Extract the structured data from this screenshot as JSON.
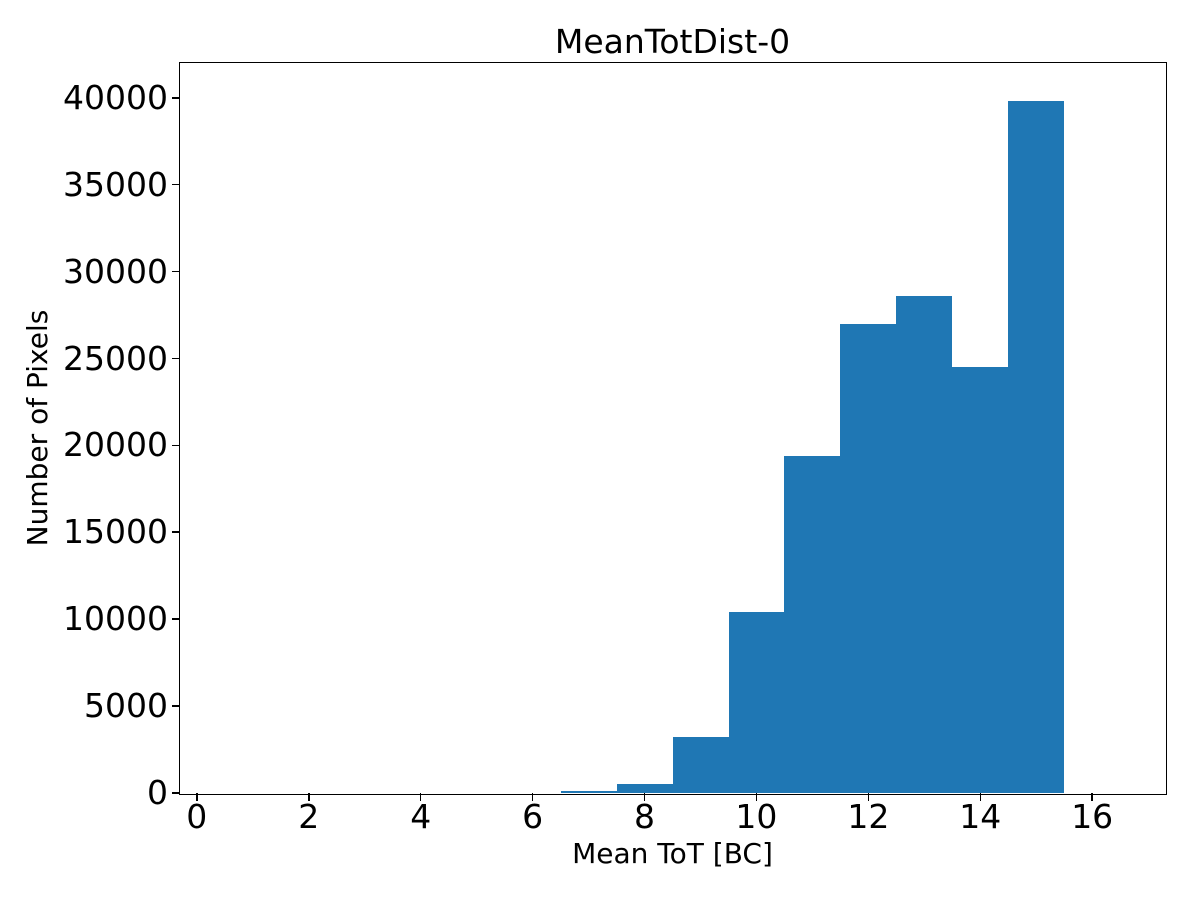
{
  "figure": {
    "background_color": "#ffffff",
    "text_color": "#000000"
  },
  "chart_data": {
    "type": "bar",
    "subtype": "histogram",
    "title": "MeanTotDist-0",
    "xlabel": "Mean ToT [BC]",
    "ylabel": "Number of Pixels",
    "bar_color": "#1f77b4",
    "grid": false,
    "legend": null,
    "bin_edges": [
      0.5,
      1.5,
      2.5,
      3.5,
      4.5,
      5.5,
      6.5,
      7.5,
      8.5,
      9.5,
      10.5,
      11.5,
      12.5,
      13.5,
      14.5,
      15.5,
      16.5
    ],
    "counts": [
      0,
      0,
      0,
      0,
      0,
      0,
      120,
      520,
      3200,
      10400,
      19400,
      27000,
      28600,
      24500,
      39800,
      0
    ],
    "xlim": [
      -0.3,
      17.3
    ],
    "ylim": [
      0,
      42000
    ],
    "xticks": [
      0,
      2,
      4,
      6,
      8,
      10,
      12,
      14,
      16
    ],
    "xtick_labels": [
      "0",
      "2",
      "4",
      "6",
      "8",
      "10",
      "12",
      "14",
      "16"
    ],
    "yticks": [
      0,
      5000,
      10000,
      15000,
      20000,
      25000,
      30000,
      35000,
      40000
    ],
    "ytick_labels": [
      "0",
      "5000",
      "10000",
      "15000",
      "20000",
      "25000",
      "30000",
      "35000",
      "40000"
    ]
  }
}
